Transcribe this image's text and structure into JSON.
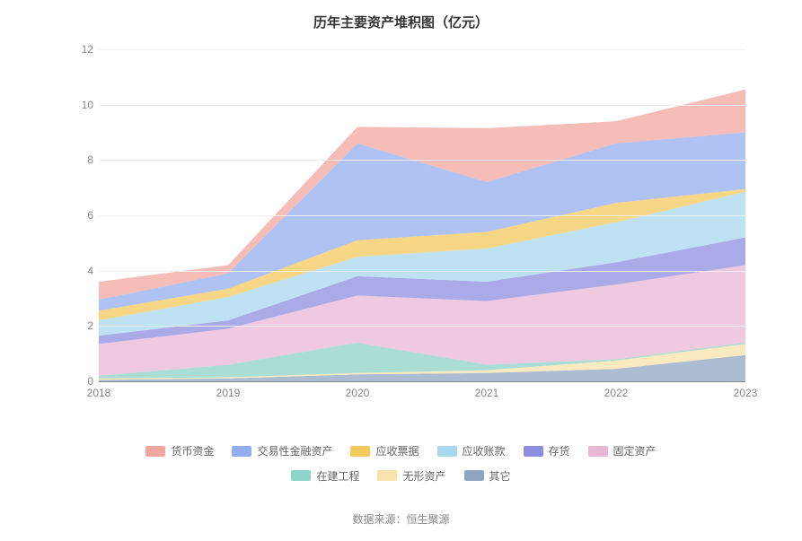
{
  "chart": {
    "title": "历年主要资产堆积图（亿元）",
    "title_fontsize": 15,
    "title_color": "#333333",
    "background_color": "#ffffff",
    "grid_color": "#eeeeee",
    "axis_color": "#888888",
    "axis_label_color": "#888888",
    "axis_label_fontsize": 12,
    "type": "stacked-area",
    "ylim": [
      0,
      12
    ],
    "ytick_step": 2,
    "yticks": [
      0,
      2,
      4,
      6,
      8,
      10,
      12
    ],
    "categories": [
      "2018",
      "2019",
      "2020",
      "2021",
      "2022",
      "2023"
    ],
    "fill_opacity": 0.75,
    "series": [
      {
        "name": "其它",
        "color": "#8fa5c4",
        "values": [
          0.05,
          0.1,
          0.25,
          0.3,
          0.45,
          0.95
        ]
      },
      {
        "name": "无形资产",
        "color": "#f9e2ab",
        "values": [
          0.05,
          0.05,
          0.05,
          0.1,
          0.3,
          0.4
        ]
      },
      {
        "name": "在建工程",
        "color": "#8ed3c7",
        "values": [
          0.1,
          0.45,
          1.1,
          0.2,
          0.05,
          0.05
        ]
      },
      {
        "name": "固定资产",
        "color": "#e9b7d4",
        "values": [
          1.15,
          1.3,
          1.7,
          2.3,
          2.7,
          2.8
        ]
      },
      {
        "name": "存货",
        "color": "#8e8ee0",
        "values": [
          0.3,
          0.3,
          0.7,
          0.7,
          0.8,
          1.0
        ]
      },
      {
        "name": "应收账款",
        "color": "#a8d8f0",
        "values": [
          0.55,
          0.85,
          0.7,
          1.2,
          1.45,
          1.65
        ]
      },
      {
        "name": "应收票据",
        "color": "#f4c95d",
        "values": [
          0.35,
          0.3,
          0.6,
          0.6,
          0.7,
          0.1
        ]
      },
      {
        "name": "交易性金融资产",
        "color": "#93aef0",
        "values": [
          0.4,
          0.55,
          3.5,
          1.8,
          2.15,
          2.05
        ]
      },
      {
        "name": "货币资金",
        "color": "#f2a6a0",
        "values": [
          0.65,
          0.3,
          0.6,
          1.95,
          0.8,
          1.55
        ]
      }
    ],
    "legend_rows": [
      [
        "货币资金",
        "交易性金融资产",
        "应收票据",
        "应收账款",
        "存货",
        "固定资产"
      ],
      [
        "在建工程",
        "无形资产",
        "其它"
      ]
    ],
    "legend_fontsize": 12,
    "legend_text_color": "#666666"
  },
  "source": {
    "label": "数据来源：恒生聚源",
    "fontsize": 12,
    "color": "#888888"
  }
}
